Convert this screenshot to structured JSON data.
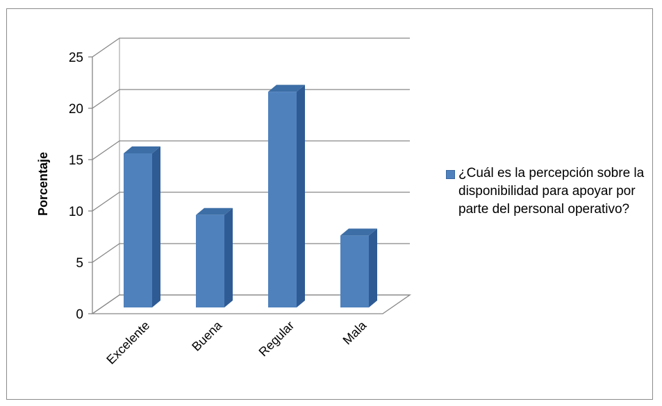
{
  "chart_data": {
    "type": "bar",
    "categories": [
      "Excelente",
      "Buena",
      "Regular",
      "Mala"
    ],
    "series": [
      {
        "name": "¿Cuál es la percepción sobre la disponibilidad para apoyar por parte del personal operativo?",
        "values": [
          15,
          9,
          21,
          7
        ]
      }
    ],
    "ylabel": "Porcentaje",
    "xlabel": "",
    "ylim": [
      0,
      25
    ],
    "yticks": [
      0,
      5,
      10,
      15,
      20,
      25
    ],
    "grid": true,
    "legend_position": "right",
    "bar_color": "#4f81bd",
    "bar_side_color": "#2f5b94",
    "bar_top_color": "#3d6ea6"
  }
}
